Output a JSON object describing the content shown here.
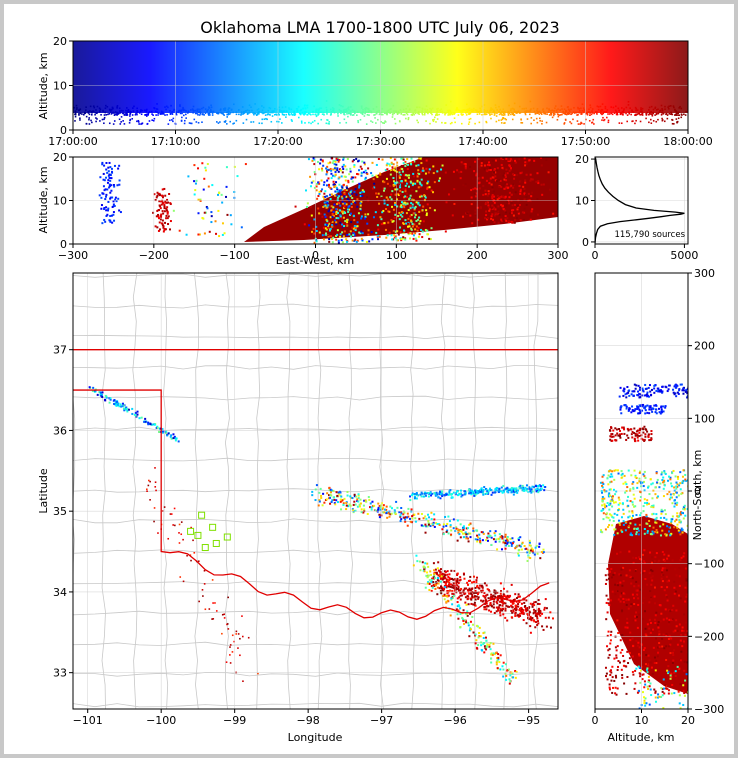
{
  "chart_data": [
    {
      "type": "scatter",
      "panel": "altitude-vs-time",
      "title": "Oklahoma LMA 1700-1800 UTC July 06, 2023",
      "xlabel": "",
      "ylabel": "Altitude, km",
      "x_ticks": [
        "17:00:00",
        "17:10:00",
        "17:20:00",
        "17:30:00",
        "17:40:00",
        "17:50:00",
        "18:00:00"
      ],
      "y_ticks": [
        "0",
        "10",
        "20"
      ],
      "xlim": [
        "17:00:00",
        "18:00:00"
      ],
      "ylim": [
        0,
        20
      ],
      "grid": true
    },
    {
      "type": "scatter",
      "panel": "altitude-vs-east-west",
      "xlabel": "East-West, km",
      "ylabel": "Altitude, km",
      "x_ticks": [
        "−300",
        "−200",
        "−100",
        "0",
        "100",
        "200",
        "300"
      ],
      "y_ticks": [
        "0",
        "10",
        "20"
      ],
      "xlim": [
        -300,
        300
      ],
      "ylim": [
        0,
        20
      ],
      "grid": true
    },
    {
      "type": "line",
      "panel": "altitude-histogram",
      "x_ticks": [
        "0",
        "5000"
      ],
      "y_ticks": [
        "0",
        "10",
        "20"
      ],
      "xlim": [
        0,
        5200
      ],
      "ylim": [
        -0.5,
        20.5
      ],
      "annotation": "115,790 sources",
      "profile": [
        [
          0,
          -0.3
        ],
        [
          30,
          1
        ],
        [
          80,
          2
        ],
        [
          150,
          3
        ],
        [
          300,
          3.8
        ],
        [
          700,
          4.4
        ],
        [
          1400,
          4.9
        ],
        [
          2200,
          5.3
        ],
        [
          3000,
          5.7
        ],
        [
          3700,
          6.1
        ],
        [
          4200,
          6.4
        ],
        [
          4800,
          6.7
        ],
        [
          5000,
          6.9
        ],
        [
          4500,
          7.2
        ],
        [
          3300,
          7.6
        ],
        [
          2300,
          8.2
        ],
        [
          1700,
          9.0
        ],
        [
          1300,
          10.0
        ],
        [
          1000,
          11.0
        ],
        [
          750,
          12.0
        ],
        [
          550,
          13.0
        ],
        [
          400,
          14.0
        ],
        [
          300,
          15.0
        ],
        [
          220,
          16.0
        ],
        [
          160,
          17.0
        ],
        [
          110,
          18.0
        ],
        [
          70,
          19.0
        ],
        [
          40,
          20.0
        ],
        [
          20,
          20.3
        ]
      ]
    },
    {
      "type": "scatter",
      "panel": "plan-view-map",
      "xlabel": "Longitude",
      "ylabel": "Latitude",
      "x_ticks": [
        "−101",
        "−100",
        "−99",
        "−98",
        "−97",
        "−96",
        "−95"
      ],
      "y_ticks": [
        "33",
        "34",
        "35",
        "36",
        "37"
      ],
      "xlim": [
        -101.2,
        -94.6
      ],
      "ylim": [
        32.55,
        37.95
      ],
      "grid": true
    },
    {
      "type": "scatter",
      "panel": "north-south-vs-altitude",
      "xlabel": "Altitude, km",
      "ylabel": "North-South, km",
      "x_ticks": [
        "0",
        "10",
        "20"
      ],
      "y_ticks": [
        "−300",
        "−200",
        "−100",
        "0",
        "100",
        "200",
        "300"
      ],
      "xlim": [
        0,
        20
      ],
      "ylim": [
        -300,
        300
      ],
      "grid": true
    }
  ]
}
